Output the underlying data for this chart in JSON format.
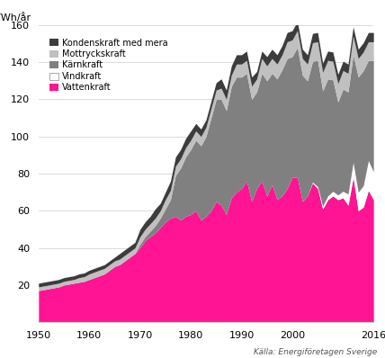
{
  "ylabel": "TWh/år",
  "source": "Källa: Energiföretagen Sverige",
  "xlim": [
    1950,
    2016
  ],
  "ylim": [
    0,
    160
  ],
  "yticks": [
    0,
    20,
    40,
    60,
    80,
    100,
    120,
    140,
    160
  ],
  "xticks": [
    1950,
    1960,
    1970,
    1980,
    1990,
    2000,
    2016
  ],
  "colors": {
    "vattenkraft": "#FF1493",
    "vindkraft": "#FFFFFF",
    "karnkraft": "#808080",
    "mottryckskraft": "#C0C0C0",
    "kondenskraft": "#3C3C3C"
  },
  "years": [
    1950,
    1951,
    1952,
    1953,
    1954,
    1955,
    1956,
    1957,
    1958,
    1959,
    1960,
    1961,
    1962,
    1963,
    1964,
    1965,
    1966,
    1967,
    1968,
    1969,
    1970,
    1971,
    1972,
    1973,
    1974,
    1975,
    1976,
    1977,
    1978,
    1979,
    1980,
    1981,
    1982,
    1983,
    1984,
    1985,
    1986,
    1987,
    1988,
    1989,
    1990,
    1991,
    1992,
    1993,
    1994,
    1995,
    1996,
    1997,
    1998,
    1999,
    2000,
    2001,
    2002,
    2003,
    2004,
    2005,
    2006,
    2007,
    2008,
    2009,
    2010,
    2011,
    2012,
    2013,
    2014,
    2015,
    2016
  ],
  "vattenkraft": [
    17,
    17.5,
    18,
    18.5,
    19,
    20,
    20.5,
    21,
    21.5,
    22,
    23,
    24,
    25,
    26,
    28,
    30,
    31,
    33,
    35,
    37,
    40,
    44,
    46,
    48,
    51,
    54,
    56,
    57,
    55,
    57,
    58,
    60,
    55,
    57,
    60,
    65,
    63,
    58,
    67,
    70,
    72,
    76,
    65,
    72,
    76,
    68,
    74,
    66,
    68,
    72,
    78,
    78,
    65,
    68,
    75,
    72,
    61,
    66,
    68,
    66,
    67,
    63,
    78,
    60,
    62,
    71,
    66
  ],
  "vindkraft": [
    0,
    0,
    0,
    0,
    0,
    0,
    0,
    0,
    0,
    0,
    0,
    0,
    0,
    0,
    0,
    0,
    0,
    0,
    0,
    0,
    0,
    0,
    0,
    0,
    0,
    0,
    0,
    0,
    0,
    0,
    0,
    0,
    0,
    0,
    0,
    0,
    0,
    0,
    0,
    0,
    0,
    0,
    0,
    0,
    0,
    0,
    0,
    0,
    0,
    0,
    0,
    0,
    0,
    0,
    0.5,
    1,
    1.5,
    2,
    2.5,
    2.5,
    3.5,
    6,
    8,
    10,
    11.5,
    16,
    15
  ],
  "karnkraft": [
    0,
    0,
    0,
    0,
    0,
    0,
    0,
    0,
    0,
    0,
    0,
    0,
    0,
    0,
    0,
    0,
    0,
    0,
    0,
    0,
    2,
    2,
    3,
    4,
    5,
    7,
    10,
    22,
    28,
    32,
    35,
    38,
    40,
    43,
    50,
    55,
    57,
    56,
    60,
    62,
    60,
    58,
    55,
    52,
    58,
    62,
    60,
    65,
    68,
    70,
    65,
    70,
    68,
    62,
    65,
    68,
    62,
    63,
    60,
    50,
    55,
    55,
    58,
    62,
    62,
    54,
    60
  ],
  "mottryckskraft": [
    2,
    2,
    2,
    2,
    2,
    2,
    2,
    2,
    2.5,
    2.5,
    3,
    3,
    3,
    3,
    3,
    3,
    3,
    3,
    3,
    3,
    4,
    4,
    4,
    4,
    4,
    5,
    5,
    5,
    5,
    5,
    5,
    5,
    5,
    5,
    5,
    5,
    6,
    6,
    6,
    7,
    7,
    7,
    7,
    7,
    8,
    8,
    8,
    8,
    8,
    9,
    9,
    9,
    9,
    9,
    10,
    10,
    10,
    10,
    10,
    10,
    10,
    10,
    10,
    10,
    10,
    10,
    10
  ],
  "kondenskraft": [
    2,
    2,
    2,
    2,
    2,
    2,
    2,
    2,
    2,
    2,
    2,
    2,
    2,
    2,
    2,
    2,
    3,
    3,
    3,
    3,
    4,
    4,
    4,
    5,
    4,
    4,
    5,
    5,
    5,
    5,
    5,
    4,
    4,
    4,
    4,
    4,
    5,
    5,
    5,
    5,
    5,
    5,
    5,
    4,
    4,
    5,
    5,
    5,
    5,
    5,
    5,
    5,
    5,
    5,
    5,
    5,
    5,
    5,
    5,
    5,
    5,
    5,
    5,
    5,
    5,
    5,
    5
  ]
}
